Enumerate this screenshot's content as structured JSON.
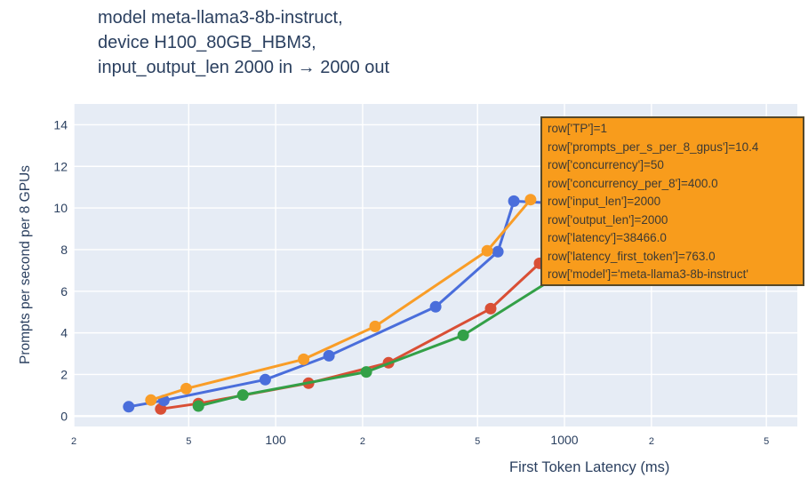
{
  "colors": {
    "background": "#ffffff",
    "plot_bg": "#e6ecf5",
    "grid": "#ffffff",
    "text": "#2a3f5f",
    "tick_text": "#2a3f5f",
    "tooltip_bg": "#f89c1c",
    "tooltip_border": "#55482a",
    "tooltip_text": "#3e3a33",
    "series_blue": "#4a6edb",
    "series_orange": "#f99d27",
    "series_red": "#d94f35",
    "series_green": "#33a047"
  },
  "title": {
    "lines": [
      "model meta-llama3-8b-instruct,",
      "device H100_80GB_HBM3,",
      "input_output_len 2000 in → 2000 out"
    ]
  },
  "tooltip": {
    "lines": [
      "row['TP']=1",
      "row['prompts_per_s_per_8_gpus']=10.4",
      "row['concurrency']=50",
      "row['concurrency_per_8']=400.0",
      "row['input_len']=2000",
      "row['output_len']=2000",
      "row['latency']=38466.0",
      "row['latency_first_token']=763.0",
      "row['model']='meta-llama3-8b-instruct'"
    ]
  },
  "chart_data": {
    "type": "line",
    "title": "model meta-llama3-8b-instruct, device H100_80GB_HBM3, input_output_len 2000 in → 2000 out",
    "xlabel": "First Token Latency (ms)",
    "ylabel": "Prompts per second per 8 GPUs",
    "x_scale": "log",
    "xlim": [
      20,
      6400
    ],
    "ylim": [
      -0.5,
      15
    ],
    "grid": true,
    "legend": "none",
    "x_ticks": {
      "values": [
        20,
        50,
        100,
        200,
        500,
        1000,
        2000,
        5000
      ],
      "labels": [
        "2",
        "5",
        "100",
        "2",
        "5",
        "1000",
        "2",
        "5"
      ],
      "major": [
        false,
        false,
        true,
        false,
        false,
        true,
        false,
        false
      ]
    },
    "y_ticks": {
      "values": [
        0,
        2,
        4,
        6,
        8,
        10,
        12,
        14
      ],
      "labels": [
        "0",
        "2",
        "4",
        "6",
        "8",
        "10",
        "12",
        "14"
      ]
    },
    "series": [
      {
        "name": "red",
        "color_key": "series_red",
        "points": [
          [
            40,
            0.34
          ],
          [
            54,
            0.6
          ],
          [
            130,
            1.58
          ],
          [
            246,
            2.56
          ],
          [
            555,
            5.16
          ],
          [
            820,
            7.34
          ]
        ]
      },
      {
        "name": "green",
        "color_key": "series_green",
        "points": [
          [
            54,
            0.48
          ],
          [
            77,
            1.01
          ],
          [
            206,
            2.12
          ],
          [
            446,
            3.88
          ],
          [
            1190,
            7.6
          ]
        ],
        "points_hidden_behind_tooltip": [
          [
            1190,
            7.6
          ]
        ]
      },
      {
        "name": "blue",
        "color_key": "series_blue",
        "points": [
          [
            31,
            0.45
          ],
          [
            41,
            0.75
          ],
          [
            92,
            1.75
          ],
          [
            153,
            2.9
          ],
          [
            358,
            5.25
          ],
          [
            588,
            7.9
          ],
          [
            668,
            10.33
          ],
          [
            1030,
            10.2
          ]
        ],
        "points_hidden_behind_tooltip": [
          [
            1030,
            10.2
          ]
        ]
      },
      {
        "name": "orange",
        "color_key": "series_orange",
        "points": [
          [
            37,
            0.77
          ],
          [
            49,
            1.32
          ],
          [
            125,
            2.73
          ],
          [
            221,
            4.31
          ],
          [
            540,
            7.94
          ],
          [
            763,
            10.4
          ]
        ]
      }
    ],
    "hovered_point": {
      "series": "orange",
      "x": 763.0,
      "y": 10.4
    }
  }
}
